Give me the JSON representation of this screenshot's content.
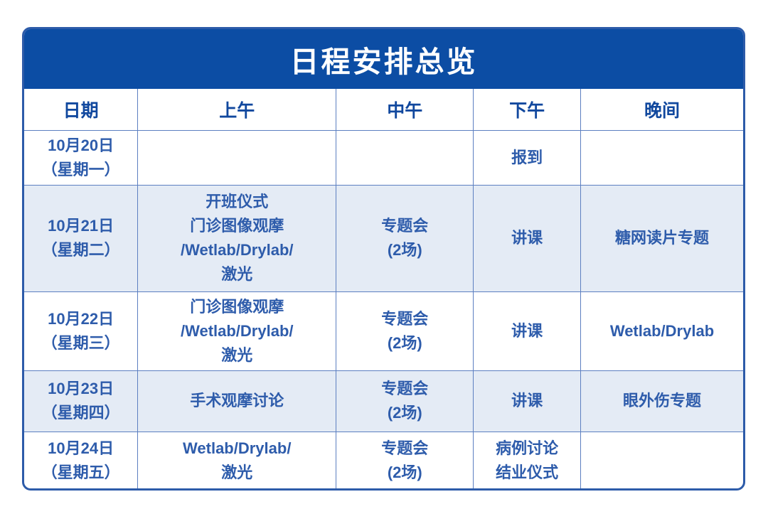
{
  "title": "日程安排总览",
  "columns": [
    "日期",
    "上午",
    "中午",
    "下午",
    "晚间"
  ],
  "rows": [
    {
      "cells": [
        [
          "10月20日",
          "（星期一）"
        ],
        [],
        [],
        [
          "报到"
        ],
        []
      ]
    },
    {
      "cells": [
        [
          "10月21日",
          "（星期二）"
        ],
        [
          "开班仪式",
          "门诊图像观摩",
          "/Wetlab/Drylab/",
          "激光"
        ],
        [
          "专题会",
          "(2场)"
        ],
        [
          "讲课"
        ],
        [
          "糖网读片专题"
        ]
      ]
    },
    {
      "cells": [
        [
          "10月22日",
          "（星期三）"
        ],
        [
          "门诊图像观摩",
          "/Wetlab/Drylab/",
          "激光"
        ],
        [
          "专题会",
          "(2场)"
        ],
        [
          "讲课"
        ],
        [
          "Wetlab/Drylab"
        ]
      ]
    },
    {
      "cells": [
        [
          "10月23日",
          "（星期四）"
        ],
        [
          "手术观摩讨论"
        ],
        [
          "专题会",
          "(2场)"
        ],
        [
          "讲课"
        ],
        [
          "眼外伤专题"
        ]
      ]
    },
    {
      "cells": [
        [
          "10月24日",
          "（星期五）"
        ],
        [
          "Wetlab/Drylab/",
          "激光"
        ],
        [
          "专题会",
          "(2场)"
        ],
        [
          "病例讨论",
          "结业仪式"
        ],
        []
      ]
    }
  ],
  "colors": {
    "banner_bg": "#0c4da4",
    "banner_text": "#ffffff",
    "header_text": "#11489e",
    "cell_text": "#2e5cab",
    "grid_line": "#5c7fc1",
    "outer_border": "#2d5ba9",
    "row_highlight": "#e4ebf5",
    "page_bg": "#ffffff"
  }
}
